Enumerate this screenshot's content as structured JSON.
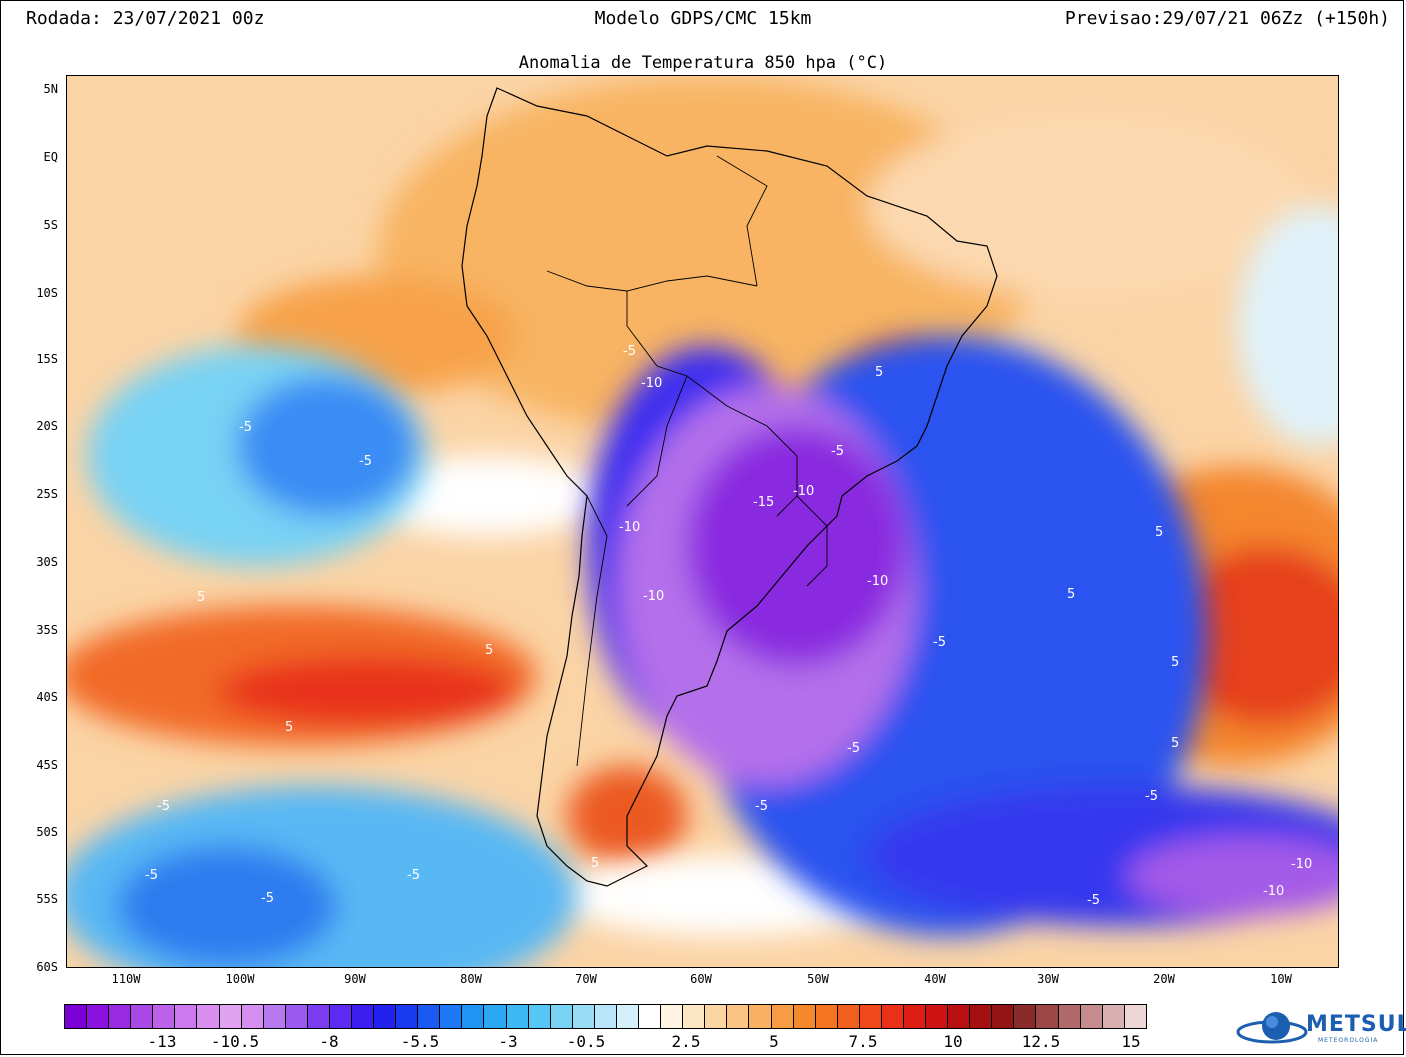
{
  "header": {
    "run": "Rodada: 23/07/2021 00z",
    "model": "Modelo GDPS/CMC 15km",
    "forecast": "Previsao:29/07/21 06Zz (+150h)"
  },
  "map": {
    "title": "Anomalia de Temperatura 850 hpa (°C)",
    "lat_labels": [
      "5N",
      "EQ",
      "5S",
      "10S",
      "15S",
      "20S",
      "25S",
      "30S",
      "35S",
      "40S",
      "45S",
      "50S",
      "55S",
      "60S"
    ],
    "lon_labels": [
      "110W",
      "100W",
      "90W",
      "80W",
      "70W",
      "60W",
      "50W",
      "40W",
      "30W",
      "20W",
      "10W"
    ],
    "contour_labels": [
      "-5",
      "-10",
      "-15",
      "5"
    ]
  },
  "colorbar": {
    "tick_labels": [
      "-13",
      "-10.5",
      "-8",
      "-5.5",
      "-3",
      "-0.5",
      "2.5",
      "5",
      "7.5",
      "10",
      "12.5",
      "15"
    ],
    "colors": [
      "#7a00d6",
      "#8a12dc",
      "#9a2ae2",
      "#aa48e6",
      "#bc62ea",
      "#cc78ee",
      "#da8ef0",
      "#e2a2f2",
      "#d68ef0",
      "#b878f0",
      "#9a5af0",
      "#7c3cf0",
      "#5c2af0",
      "#3c1ef0",
      "#2222ee",
      "#1a3af0",
      "#1a5af2",
      "#1c78f4",
      "#2094f4",
      "#2aa8f4",
      "#3cb8f4",
      "#58c6f4",
      "#78d2f4",
      "#98dcf6",
      "#b8e6f8",
      "#d4f0fa",
      "#ffffff",
      "#fff4e2",
      "#fde6c4",
      "#fcd6a2",
      "#fbc482",
      "#fab062",
      "#f89c44",
      "#f6882c",
      "#f47422",
      "#f25e1e",
      "#f0481a",
      "#ea3016",
      "#de1e14",
      "#cc1212",
      "#b81010",
      "#a41010",
      "#921414",
      "#8a2a2a",
      "#9c4646",
      "#b06868",
      "#c48c8c",
      "#d8b0b0",
      "#ecd6d6"
    ]
  },
  "logo": {
    "name": "METSUL",
    "sub": "METEOROLOGIA"
  }
}
